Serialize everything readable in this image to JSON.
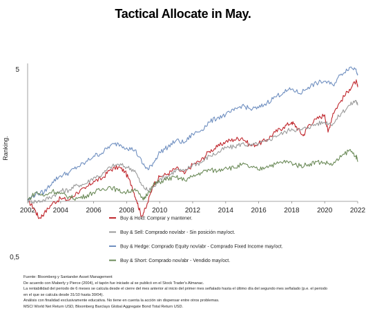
{
  "chart_data": {
    "type": "line",
    "title": "Tactical Allocate in May.",
    "ylabel": "Ranking.",
    "y_scale": "log",
    "ylim": [
      0.5,
      6
    ],
    "yticks": [
      "5",
      "0,5"
    ],
    "xlim": [
      2002,
      2022
    ],
    "xticks": [
      "2002",
      "2004",
      "2006",
      "2008",
      "2010",
      "2012",
      "2014",
      "2016",
      "2018",
      "2020",
      "2022"
    ],
    "grid": false,
    "legend_position": "bottom-right",
    "series": [
      {
        "name": "Buy & Hold: Comprar y mantener.",
        "color": "#c0272d",
        "x": [
          2002,
          2002.4,
          2002.7,
          2003,
          2003.5,
          2004,
          2004.5,
          2005,
          2005.5,
          2006,
          2006.5,
          2007,
          2007.5,
          2007.9,
          2008.3,
          2008.6,
          2008.9,
          2009.2,
          2009.6,
          2010,
          2010.5,
          2011,
          2011.5,
          2012,
          2012.5,
          2013,
          2013.5,
          2014,
          2014.5,
          2015,
          2015.5,
          2016,
          2016.5,
          2017,
          2017.5,
          2018,
          2018.3,
          2018.7,
          2019,
          2019.5,
          2020,
          2020.2,
          2020.5,
          2021,
          2021.5,
          2021.9,
          2022
        ],
        "values": [
          1.0,
          0.9,
          0.8,
          0.85,
          0.96,
          1.02,
          1.0,
          1.1,
          1.15,
          1.26,
          1.3,
          1.45,
          1.5,
          1.42,
          1.2,
          1.0,
          0.82,
          0.92,
          1.2,
          1.33,
          1.38,
          1.48,
          1.38,
          1.55,
          1.62,
          1.82,
          1.92,
          2.05,
          2.1,
          2.15,
          1.95,
          2.0,
          2.1,
          2.3,
          2.45,
          2.6,
          2.45,
          2.2,
          2.5,
          2.7,
          2.85,
          2.3,
          2.9,
          3.4,
          3.9,
          4.3,
          4.0
        ]
      },
      {
        "name": "Buy & Sell: Comprado nov/abr - Sin posición may/oct.",
        "color": "#9a9a9a",
        "x": [
          2002,
          2002.5,
          2003,
          2003.5,
          2004,
          2004.5,
          2005,
          2005.5,
          2006,
          2006.5,
          2007,
          2007.5,
          2008,
          2008.5,
          2008.9,
          2009.3,
          2009.7,
          2010,
          2010.5,
          2011,
          2011.5,
          2012,
          2012.5,
          2013,
          2013.5,
          2014,
          2014.5,
          2015,
          2015.5,
          2016,
          2016.5,
          2017,
          2017.5,
          2018,
          2018.5,
          2019,
          2019.5,
          2020,
          2020.5,
          2021,
          2021.5,
          2021.9,
          2022
        ],
        "values": [
          1.0,
          0.98,
          1.0,
          1.05,
          1.12,
          1.13,
          1.2,
          1.22,
          1.32,
          1.36,
          1.5,
          1.55,
          1.5,
          1.44,
          1.2,
          1.12,
          1.18,
          1.3,
          1.34,
          1.45,
          1.42,
          1.55,
          1.58,
          1.72,
          1.78,
          1.9,
          1.92,
          2.0,
          1.95,
          2.0,
          2.05,
          2.2,
          2.28,
          2.4,
          2.35,
          2.45,
          2.55,
          2.6,
          2.55,
          2.9,
          3.2,
          3.4,
          3.2
        ]
      },
      {
        "name": "Buy & Hedge: Comprado Equity nov/abr - Comprado Fixed Income may/oct.",
        "color": "#6f8fc0",
        "x": [
          2002,
          2002.5,
          2003,
          2003.5,
          2004,
          2004.5,
          2005,
          2005.5,
          2006,
          2006.5,
          2007,
          2007.5,
          2008,
          2008.5,
          2009,
          2009.3,
          2009.7,
          2010,
          2010.5,
          2011,
          2011.5,
          2012,
          2012.5,
          2013,
          2013.5,
          2014,
          2014.5,
          2015,
          2015.5,
          2016,
          2016.5,
          2017,
          2017.5,
          2018,
          2018.5,
          2019,
          2019.5,
          2020,
          2020.5,
          2021,
          2021.5,
          2021.9,
          2022
        ],
        "values": [
          1.0,
          1.08,
          1.1,
          1.25,
          1.35,
          1.4,
          1.5,
          1.58,
          1.72,
          1.78,
          1.95,
          2.0,
          1.9,
          1.85,
          1.55,
          1.45,
          1.62,
          1.8,
          1.92,
          2.08,
          2.02,
          2.25,
          2.35,
          2.6,
          2.75,
          2.85,
          3.0,
          3.2,
          3.05,
          3.1,
          3.3,
          3.55,
          3.75,
          3.9,
          3.7,
          4.0,
          4.2,
          4.3,
          4.1,
          4.7,
          5.1,
          5.0,
          4.7
        ]
      },
      {
        "name": "Buy & Short: Comprado nov/abr - Vendido may/oct.",
        "color": "#6b8a58",
        "x": [
          2002,
          2002.5,
          2003,
          2003.5,
          2004,
          2004.5,
          2005,
          2005.5,
          2006,
          2006.5,
          2007,
          2007.5,
          2008,
          2008.5,
          2009,
          2009.3,
          2009.7,
          2010,
          2010.5,
          2011,
          2011.5,
          2012,
          2012.5,
          2013,
          2013.5,
          2014,
          2014.5,
          2015,
          2015.5,
          2016,
          2016.5,
          2017,
          2017.5,
          2018,
          2018.5,
          2019,
          2019.5,
          2020,
          2020.5,
          2021,
          2021.5,
          2021.9,
          2022
        ],
        "values": [
          1.0,
          1.1,
          1.05,
          1.12,
          1.08,
          1.04,
          1.02,
          1.05,
          1.1,
          1.14,
          1.18,
          1.12,
          1.1,
          1.15,
          1.0,
          1.1,
          1.22,
          1.25,
          1.3,
          1.32,
          1.28,
          1.33,
          1.4,
          1.45,
          1.43,
          1.5,
          1.48,
          1.55,
          1.5,
          1.45,
          1.52,
          1.55,
          1.6,
          1.58,
          1.52,
          1.55,
          1.6,
          1.58,
          1.55,
          1.7,
          1.85,
          1.72,
          1.6
        ]
      }
    ]
  },
  "notes": [
    "Fuente: Bloomberg y Santander Asset Management",
    "De acuerdo con Maberly y Pierce (2004), el tapón fue iniciado al se publicó en el Stock Trader's Almanac.",
    "La rentabilidad del periodo de 6 meses se calcula desde el cierre del mes anterior al inicio del primer mes señalado hasta el último día del segundo mes señalado (p.e. el periodo",
    "en el que se calcula desde 31/10 hasta 30/04).",
    "Análisis con finalidad exclusivamente educativa. No tiene en cuenta la acción sin dispensar entre otros problemas.",
    "MSCI World Net Return USD, Bloomberg Barclays Global Aggregate Bond Total Return USD."
  ]
}
